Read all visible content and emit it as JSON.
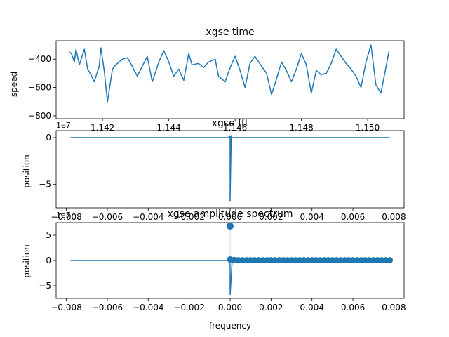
{
  "chart_data": [
    {
      "type": "line",
      "title": "xgse time",
      "xlabel": "",
      "ylabel": "speed",
      "x_offset_label": "1e7",
      "xlim": [
        11406000,
        11511000
      ],
      "ylim": [
        -820,
        -270
      ],
      "x_ticks": [
        11420000,
        11440000,
        11460000,
        11480000,
        11500000
      ],
      "x_tick_labels": [
        "1.142",
        "1.144",
        "1.146",
        "1.148",
        "1.150"
      ],
      "y_ticks": [
        -400,
        -600,
        -800
      ],
      "y_tick_labels": [
        "−400",
        "−600",
        "−800"
      ],
      "series": [
        {
          "x": [
            11410000,
            11410600,
            11411500,
            11412000,
            11413000,
            11414500,
            11415500,
            11416500,
            11417500,
            11419000,
            11419500,
            11420500,
            11421500,
            11423000,
            11424000,
            11426000,
            11427500,
            11428500,
            11430500,
            11432000,
            11433500,
            11435000,
            11437000,
            11438500,
            11440000,
            11441500,
            11443000,
            11444500,
            11446000,
            11447000,
            11449000,
            11450500,
            11452000,
            11454000,
            11455000,
            11457000,
            11458500,
            11460000,
            11461500,
            11463000,
            11464500,
            11466000,
            11468000,
            11469500,
            11471000,
            11472500,
            11474000,
            11475500,
            11477000,
            11478500,
            11480000,
            11481500,
            11483000,
            11484500,
            11486000,
            11487500,
            11489000,
            11490500,
            11492000,
            11493500,
            11495000,
            11496500,
            11498000,
            11499500,
            11501000,
            11502500,
            11504000,
            11505500,
            11506500
          ],
          "y": [
            -350,
            -360,
            -420,
            -330,
            -440,
            -330,
            -470,
            -510,
            -560,
            -450,
            -320,
            -480,
            -700,
            -470,
            -440,
            -400,
            -390,
            -430,
            -520,
            -450,
            -380,
            -560,
            -420,
            -340,
            -420,
            -520,
            -470,
            -550,
            -360,
            -440,
            -430,
            -460,
            -420,
            -400,
            -520,
            -560,
            -460,
            -380,
            -480,
            -600,
            -430,
            -380,
            -450,
            -500,
            -650,
            -540,
            -420,
            -480,
            -560,
            -470,
            -360,
            -440,
            -640,
            -480,
            -510,
            -500,
            -430,
            -330,
            -380,
            -430,
            -470,
            -520,
            -600,
            -420,
            -300,
            -580,
            -640,
            -460,
            -340
          ]
        }
      ]
    },
    {
      "type": "line",
      "title": "xgse fft",
      "xlabel": "",
      "ylabel": "position",
      "x_offset_label": "1e7",
      "xlim": [
        -0.0085,
        0.0085
      ],
      "ylim": [
        -7.5,
        0.75
      ],
      "x_ticks": [
        -0.008,
        -0.006,
        -0.004,
        -0.002,
        0.0,
        0.002,
        0.004,
        0.006,
        0.008
      ],
      "x_tick_labels": [
        "−0.008",
        "−0.006",
        "−0.004",
        "−0.002",
        "0.000",
        "0.002",
        "0.004",
        "0.006",
        "0.008"
      ],
      "y_ticks": [
        0,
        -5
      ],
      "y_tick_labels": [
        "0",
        "−5"
      ],
      "series": [
        {
          "x": [
            -0.0078,
            -0.0001,
            0.0,
            0.0,
            5e-05,
            0.0001,
            0.0078
          ],
          "y": [
            0.0,
            0.0,
            0.2,
            -6.8,
            0.2,
            0.0,
            0.0
          ]
        }
      ]
    },
    {
      "type": "scatter",
      "title": "xgse amplitude spectrum",
      "xlabel": "frequency",
      "ylabel": "position",
      "xlim": [
        -0.0085,
        0.0085
      ],
      "ylim": [
        -7.5,
        7.5
      ],
      "x_ticks": [
        -0.008,
        -0.006,
        -0.004,
        -0.002,
        0.0,
        0.002,
        0.004,
        0.006,
        0.008
      ],
      "x_tick_labels": [
        "−0.008",
        "−0.006",
        "−0.004",
        "−0.002",
        "0.000",
        "0.002",
        "0.004",
        "0.006",
        "0.008"
      ],
      "y_ticks": [
        5,
        0,
        -5
      ],
      "y_tick_labels": [
        "5",
        "0",
        "−5"
      ],
      "line": {
        "x": [
          -0.0078,
          -0.0001,
          0.0,
          0.0,
          0.0001,
          0.0078
        ],
        "y": [
          0.0,
          0.0,
          0.0,
          -6.8,
          0.0,
          0.0
        ]
      },
      "points": {
        "x": [
          0.0,
          0.0,
          0.0002,
          0.0004,
          0.0006,
          0.0008,
          0.001,
          0.0012,
          0.0014,
          0.0016,
          0.0018,
          0.002,
          0.0022,
          0.0024,
          0.0026,
          0.0028,
          0.003,
          0.0032,
          0.0034,
          0.0036,
          0.0038,
          0.004,
          0.0042,
          0.0044,
          0.0046,
          0.0048,
          0.005,
          0.0052,
          0.0054,
          0.0056,
          0.0058,
          0.006,
          0.0062,
          0.0064,
          0.0066,
          0.0068,
          0.007,
          0.0072,
          0.0074,
          0.0076,
          0.0078
        ],
        "y": [
          6.8,
          0.2,
          0.1,
          0.05,
          0.05,
          0.05,
          0.05,
          0.05,
          0.05,
          0.05,
          0.05,
          0.05,
          0.05,
          0.05,
          0.05,
          0.05,
          0.05,
          0.05,
          0.05,
          0.05,
          0.05,
          0.05,
          0.05,
          0.05,
          0.05,
          0.05,
          0.05,
          0.05,
          0.05,
          0.05,
          0.05,
          0.05,
          0.05,
          0.05,
          0.05,
          0.05,
          0.05,
          0.05,
          0.05,
          0.05,
          0.05
        ]
      }
    }
  ],
  "colors": {
    "series": "#1f77b4",
    "axis": "#000000",
    "background": "#ffffff"
  }
}
